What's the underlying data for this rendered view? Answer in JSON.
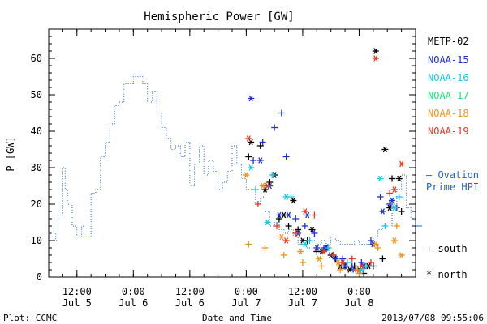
{
  "chart_data": {
    "type": "scatter",
    "title": "Hemispheric Power [GW]",
    "ylabel": "P [GW]",
    "xlabel": "Date and Time",
    "ylim": [
      0,
      68
    ],
    "xlim": [
      "2013-07-05T06:00",
      "2013-07-08T12:00"
    ],
    "yticks": [
      0,
      10,
      20,
      30,
      40,
      50,
      60
    ],
    "xticks": [
      {
        "t": "2013-07-05T12:00",
        "time": "12:00",
        "date": "Jul 5"
      },
      {
        "t": "2013-07-06T00:00",
        "time": "0:00",
        "date": "Jul 6"
      },
      {
        "t": "2013-07-06T12:00",
        "time": "12:00",
        "date": "Jul 6"
      },
      {
        "t": "2013-07-07T00:00",
        "time": "0:00",
        "date": "Jul 7"
      },
      {
        "t": "2013-07-07T12:00",
        "time": "12:00",
        "date": "Jul 7"
      },
      {
        "t": "2013-07-08T00:00",
        "time": "0:00",
        "date": "Jul 8"
      }
    ],
    "legend_position": "right",
    "grid": false,
    "ovation": {
      "name": "Ovation Prime HPI",
      "legend_lines": [
        "– Ovation",
        "Prime HPI"
      ],
      "color": "#1f5fbf",
      "x": [
        "2013-07-05T06:00",
        "2013-07-05T07:00",
        "2013-07-05T07:30",
        "2013-07-05T08:00",
        "2013-07-05T08:30",
        "2013-07-05T09:00",
        "2013-07-05T09:30",
        "2013-07-05T10:00",
        "2013-07-05T11:00",
        "2013-07-05T12:00",
        "2013-07-05T13:00",
        "2013-07-05T13:30",
        "2013-07-05T14:00",
        "2013-07-05T15:00",
        "2013-07-05T16:00",
        "2013-07-05T17:00",
        "2013-07-05T18:00",
        "2013-07-05T19:00",
        "2013-07-05T20:00",
        "2013-07-05T21:00",
        "2013-07-05T22:00",
        "2013-07-05T23:00",
        "2013-07-06T00:00",
        "2013-07-06T01:00",
        "2013-07-06T02:00",
        "2013-07-06T03:00",
        "2013-07-06T04:00",
        "2013-07-06T05:00",
        "2013-07-06T06:00",
        "2013-07-06T07:00",
        "2013-07-06T08:00",
        "2013-07-06T09:00",
        "2013-07-06T10:00",
        "2013-07-06T11:00",
        "2013-07-06T12:00",
        "2013-07-06T13:00",
        "2013-07-06T14:00",
        "2013-07-06T15:00",
        "2013-07-06T16:00",
        "2013-07-06T17:00",
        "2013-07-06T18:00",
        "2013-07-06T19:00",
        "2013-07-06T20:00",
        "2013-07-06T21:00",
        "2013-07-06T22:00",
        "2013-07-06T23:00",
        "2013-07-07T00:00",
        "2013-07-07T01:00",
        "2013-07-07T02:00",
        "2013-07-07T03:00",
        "2013-07-07T04:00",
        "2013-07-07T05:00",
        "2013-07-07T06:00",
        "2013-07-07T07:00",
        "2013-07-07T08:00",
        "2013-07-07T09:00",
        "2013-07-07T10:00",
        "2013-07-07T11:00",
        "2013-07-07T12:00",
        "2013-07-07T13:00",
        "2013-07-07T14:00",
        "2013-07-07T15:00",
        "2013-07-07T16:00",
        "2013-07-07T17:00",
        "2013-07-07T18:00",
        "2013-07-07T19:00",
        "2013-07-07T20:00",
        "2013-07-07T21:00",
        "2013-07-07T22:00",
        "2013-07-07T23:00",
        "2013-07-08T00:00",
        "2013-07-08T01:00",
        "2013-07-08T02:00",
        "2013-07-08T03:00",
        "2013-07-08T04:00",
        "2013-07-08T05:00",
        "2013-07-08T06:00",
        "2013-07-08T07:00",
        "2013-07-08T08:00",
        "2013-07-08T09:00",
        "2013-07-08T10:00",
        "2013-07-08T11:00",
        "2013-07-08T12:00"
      ],
      "y": [
        12,
        12,
        10,
        17,
        17,
        30,
        24,
        20,
        14,
        11,
        14,
        11,
        11,
        23,
        24,
        33,
        37,
        42,
        47,
        48,
        53,
        53,
        55,
        55,
        53,
        48,
        51,
        45,
        41,
        38,
        35,
        36,
        33,
        37,
        25,
        31,
        36,
        28,
        32,
        29,
        24,
        26,
        29,
        36,
        31,
        27,
        24,
        24,
        20,
        22,
        18,
        14,
        15,
        13,
        12,
        13,
        11,
        9,
        9,
        8,
        10,
        9,
        10,
        9,
        11,
        10,
        9,
        9,
        9,
        10,
        9,
        9,
        9,
        11,
        13,
        14,
        14,
        20,
        24,
        28,
        19,
        16,
        14
      ]
    },
    "series": [
      {
        "name": "METP-02",
        "color": "#000000",
        "south": {
          "x": [
            "2013-07-07T00:30",
            "2013-07-07T03:00",
            "2013-07-07T05:00",
            "2013-07-07T07:00",
            "2013-07-07T09:00",
            "2013-07-07T11:00",
            "2013-07-07T13:00",
            "2013-07-07T15:00",
            "2013-07-07T17:00",
            "2013-07-07T19:00",
            "2013-07-07T21:00",
            "2013-07-07T23:00",
            "2013-07-08T01:00",
            "2013-07-08T03:00",
            "2013-07-08T05:00",
            "2013-07-08T07:00",
            "2013-07-08T09:00"
          ],
          "y": [
            33,
            36,
            26,
            16,
            14,
            13,
            10,
            7,
            8,
            5,
            3,
            3,
            1,
            3,
            5,
            27,
            18
          ]
        },
        "north": {
          "x": [
            "2013-07-07T01:00",
            "2013-07-07T04:00",
            "2013-07-07T06:00",
            "2013-07-07T08:00",
            "2013-07-07T10:00",
            "2013-07-07T12:00",
            "2013-07-07T14:00",
            "2013-07-07T16:00",
            "2013-07-07T18:00",
            "2013-07-07T20:00",
            "2013-07-07T22:00",
            "2013-07-08T00:00",
            "2013-07-08T02:00",
            "2013-07-08T03:30",
            "2013-07-08T05:30",
            "2013-07-08T06:30",
            "2013-07-08T08:30"
          ],
          "y": [
            37,
            24,
            28,
            17,
            21,
            10,
            13,
            7,
            6,
            3,
            2,
            2,
            3,
            62,
            35,
            19,
            27
          ]
        }
      },
      {
        "name": "NOAA-15",
        "color": "#1d2fd0",
        "south": {
          "x": [
            "2013-07-07T01:30",
            "2013-07-07T03:30",
            "2013-07-07T06:00",
            "2013-07-07T07:30",
            "2013-07-07T08:30",
            "2013-07-07T10:30",
            "2013-07-07T12:30",
            "2013-07-07T14:30",
            "2013-07-07T16:30",
            "2013-07-07T18:30",
            "2013-07-07T20:30",
            "2013-07-07T22:30",
            "2013-07-08T00:30",
            "2013-07-08T02:30",
            "2013-07-08T04:30",
            "2013-07-08T06:30",
            "2013-07-08T08:00"
          ],
          "y": [
            32,
            37,
            41,
            45,
            33,
            16,
            14,
            12,
            8,
            6,
            5,
            3,
            4,
            10,
            22,
            20,
            19
          ]
        },
        "north": {
          "x": [
            "2013-07-07T01:00",
            "2013-07-07T03:00",
            "2013-07-07T05:00",
            "2013-07-07T07:00",
            "2013-07-07T09:00",
            "2013-07-07T11:00",
            "2013-07-07T13:00",
            "2013-07-07T15:00",
            "2013-07-07T17:00",
            "2013-07-07T19:00",
            "2013-07-07T21:00",
            "2013-07-07T23:00",
            "2013-07-08T01:00",
            "2013-07-08T03:00",
            "2013-07-08T05:00",
            "2013-07-08T07:00"
          ],
          "y": [
            49,
            32,
            25,
            17,
            17,
            12,
            17,
            8,
            8,
            5,
            3,
            2,
            3,
            9,
            18,
            21
          ]
        }
      },
      {
        "name": "NOAA-16",
        "color": "#18c6e6",
        "south": {
          "x": [
            "2013-07-07T02:00",
            "2013-07-07T05:30",
            "2013-07-07T09:30",
            "2013-07-07T13:30",
            "2013-07-07T17:30",
            "2013-07-07T21:30",
            "2013-07-08T01:30",
            "2013-07-08T05:30",
            "2013-07-08T08:30"
          ],
          "y": [
            24,
            28,
            22,
            10,
            8,
            4,
            3,
            14,
            22
          ]
        },
        "north": {
          "x": [
            "2013-07-07T01:00",
            "2013-07-07T04:30",
            "2013-07-07T08:30",
            "2013-07-07T12:30",
            "2013-07-07T16:30",
            "2013-07-07T20:30",
            "2013-07-08T00:30",
            "2013-07-08T04:30",
            "2013-07-08T07:30"
          ],
          "y": [
            30,
            15,
            22,
            9,
            7,
            4,
            2,
            27,
            19
          ]
        }
      },
      {
        "name": "NOAA-17",
        "color": "#22e07a",
        "south": {
          "x": [],
          "y": []
        },
        "north": {
          "x": [],
          "y": []
        }
      },
      {
        "name": "NOAA-18",
        "color": "#f0921a",
        "south": {
          "x": [
            "2013-07-07T00:30",
            "2013-07-07T04:00",
            "2013-07-07T08:00",
            "2013-07-07T12:00",
            "2013-07-07T16:00",
            "2013-07-07T20:00",
            "2013-07-08T00:00",
            "2013-07-08T04:00",
            "2013-07-08T08:00"
          ],
          "y": [
            9,
            8,
            6,
            4,
            3,
            2,
            1,
            8,
            14
          ]
        },
        "north": {
          "x": [
            "2013-07-07T00:00",
            "2013-07-07T03:30",
            "2013-07-07T07:30",
            "2013-07-07T11:30",
            "2013-07-07T15:30",
            "2013-07-07T19:30",
            "2013-07-07T23:30",
            "2013-07-08T03:30",
            "2013-07-08T07:30",
            "2013-07-08T09:00"
          ],
          "y": [
            28,
            25,
            11,
            7,
            5,
            4,
            2,
            9,
            10,
            6
          ]
        }
      },
      {
        "name": "NOAA-19",
        "color": "#e03a1c",
        "south": {
          "x": [
            "2013-07-07T02:30",
            "2013-07-07T06:30",
            "2013-07-07T10:30",
            "2013-07-07T14:30",
            "2013-07-07T18:30",
            "2013-07-07T22:30",
            "2013-07-08T02:30",
            "2013-07-08T06:30"
          ],
          "y": [
            20,
            14,
            12,
            17,
            6,
            5,
            4,
            23
          ]
        },
        "north": {
          "x": [
            "2013-07-07T00:30",
            "2013-07-07T04:30",
            "2013-07-07T08:30",
            "2013-07-07T12:30",
            "2013-07-07T16:30",
            "2013-07-07T20:30",
            "2013-07-08T00:30",
            "2013-07-08T03:30",
            "2013-07-08T07:30",
            "2013-07-08T09:00"
          ],
          "y": [
            38,
            25,
            10,
            18,
            7,
            4,
            3,
            60,
            24,
            31
          ]
        }
      }
    ],
    "symbols": {
      "south": "+ south",
      "north": "* north"
    }
  },
  "footer": {
    "left": "Plot: CCMC",
    "center": "Date and Time",
    "right": "2013/07/08 09:55:06"
  }
}
